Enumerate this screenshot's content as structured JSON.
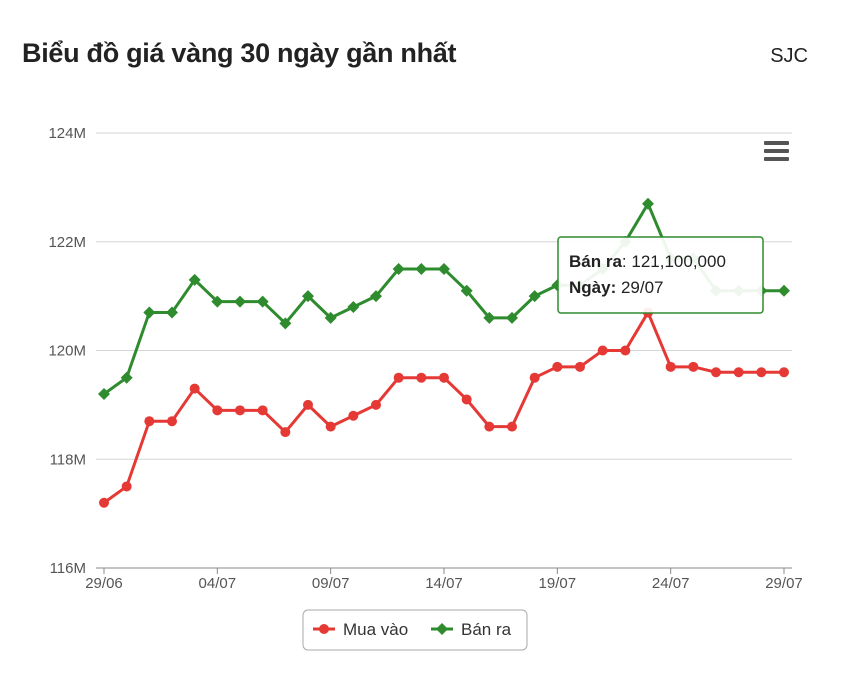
{
  "header": {
    "title": "Biểu đồ giá vàng 30 ngày gần nhất",
    "brand": "SJC"
  },
  "menu_icon": "hamburger-menu-icon",
  "colors": {
    "buy": "#e53935",
    "sell": "#2e8b2e",
    "grid": "#d6d6d6",
    "tooltip_border": "#2e8b2e"
  },
  "chart_data": {
    "type": "line",
    "x": [
      "29/06",
      "30/06",
      "01/07",
      "02/07",
      "03/07",
      "04/07",
      "05/07",
      "06/07",
      "07/07",
      "08/07",
      "09/07",
      "10/07",
      "11/07",
      "12/07",
      "13/07",
      "14/07",
      "15/07",
      "16/07",
      "17/07",
      "18/07",
      "19/07",
      "20/07",
      "21/07",
      "22/07",
      "23/07",
      "24/07",
      "25/07",
      "26/07",
      "27/07",
      "28/07",
      "29/07"
    ],
    "x_tick_labels": [
      "29/06",
      "04/07",
      "09/07",
      "14/07",
      "19/07",
      "24/07",
      "29/07"
    ],
    "y_tick_labels": [
      "116M",
      "118M",
      "120M",
      "122M",
      "124M"
    ],
    "ylim": [
      116000000,
      124000000
    ],
    "grid": true,
    "legend_position": "bottom-center",
    "series": [
      {
        "name": "Mua vào",
        "color": "#e53935",
        "marker": "circle",
        "values": [
          117200000,
          117500000,
          118700000,
          118700000,
          119300000,
          118900000,
          118900000,
          118900000,
          118500000,
          119000000,
          118600000,
          118800000,
          119000000,
          119500000,
          119500000,
          119500000,
          119100000,
          118600000,
          118600000,
          119500000,
          119700000,
          119700000,
          120000000,
          120000000,
          120700000,
          119700000,
          119700000,
          119600000,
          119600000,
          119600000,
          119600000
        ]
      },
      {
        "name": "Bán ra",
        "color": "#2e8b2e",
        "marker": "diamond",
        "values": [
          119200000,
          119500000,
          120700000,
          120700000,
          121300000,
          120900000,
          120900000,
          120900000,
          120500000,
          121000000,
          120600000,
          120800000,
          121000000,
          121500000,
          121500000,
          121500000,
          121100000,
          120600000,
          120600000,
          121000000,
          121200000,
          121200000,
          121500000,
          122000000,
          122700000,
          121700000,
          121700000,
          121100000,
          121100000,
          121100000,
          121100000
        ]
      }
    ],
    "tooltip": {
      "series_label": "Bán ra",
      "value_text": "121,100,000",
      "date_label": "Ngày",
      "date_value": "29/07"
    }
  }
}
